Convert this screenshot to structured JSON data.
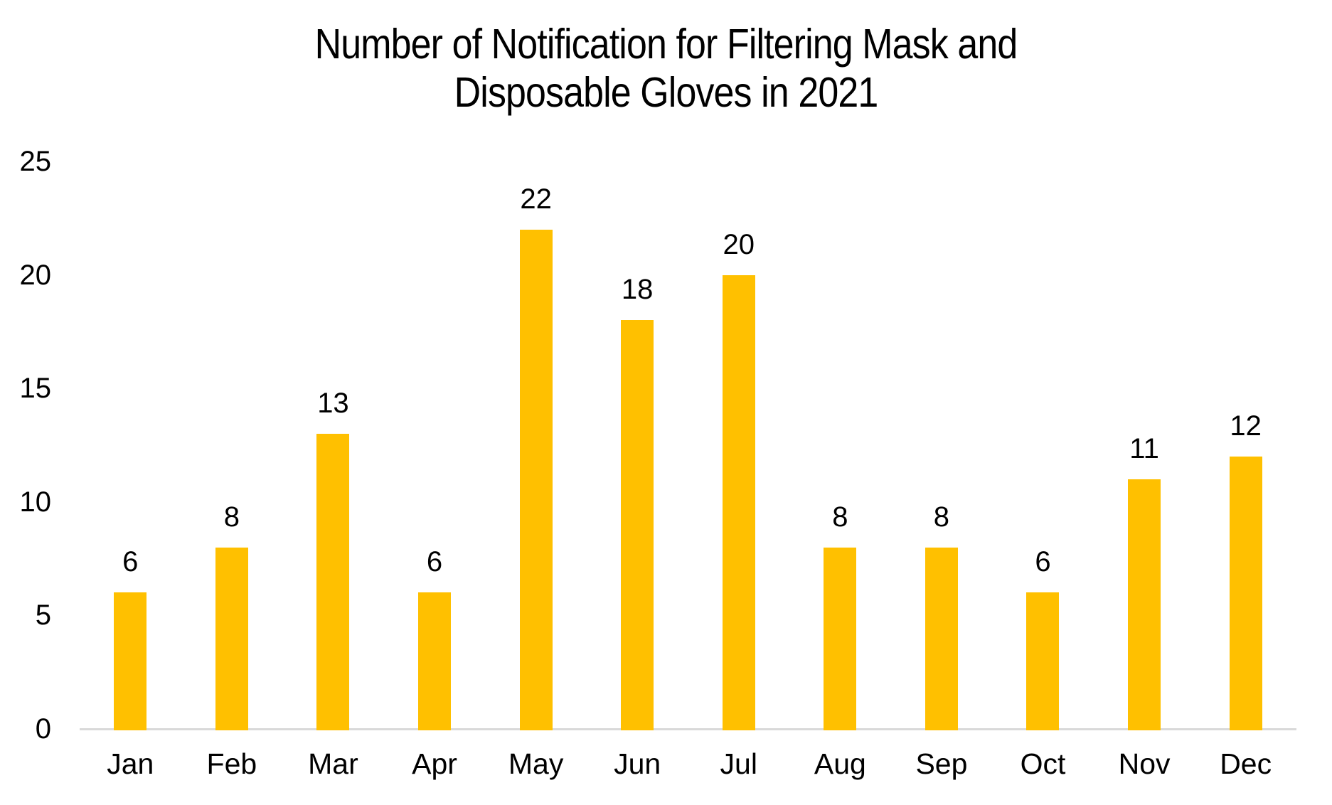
{
  "chart_data": {
    "type": "bar",
    "title": "Number of Notification for Filtering Mask and Disposable Gloves in 2021",
    "title_lines": [
      "Number of Notification for Filtering Mask and",
      "Disposable Gloves in 2021"
    ],
    "categories": [
      "Jan",
      "Feb",
      "Mar",
      "Apr",
      "May",
      "Jun",
      "Jul",
      "Aug",
      "Sep",
      "Oct",
      "Nov",
      "Dec"
    ],
    "values": [
      6,
      8,
      13,
      6,
      22,
      18,
      20,
      8,
      8,
      6,
      11,
      12
    ],
    "data_labels": [
      "6",
      "8",
      "13",
      "6",
      "22",
      "18",
      "20",
      "8",
      "8",
      "6",
      "11",
      "12"
    ],
    "yticks": [
      0,
      5,
      10,
      15,
      20,
      25
    ],
    "ylim": [
      0,
      25
    ],
    "xlabel": "",
    "ylabel": "",
    "grid": false,
    "legend_position": "none",
    "bar_color": "#FFC000",
    "axis_line_color": "#D9D9D9",
    "text_color": "#000000",
    "background_color": "#FFFFFF"
  }
}
